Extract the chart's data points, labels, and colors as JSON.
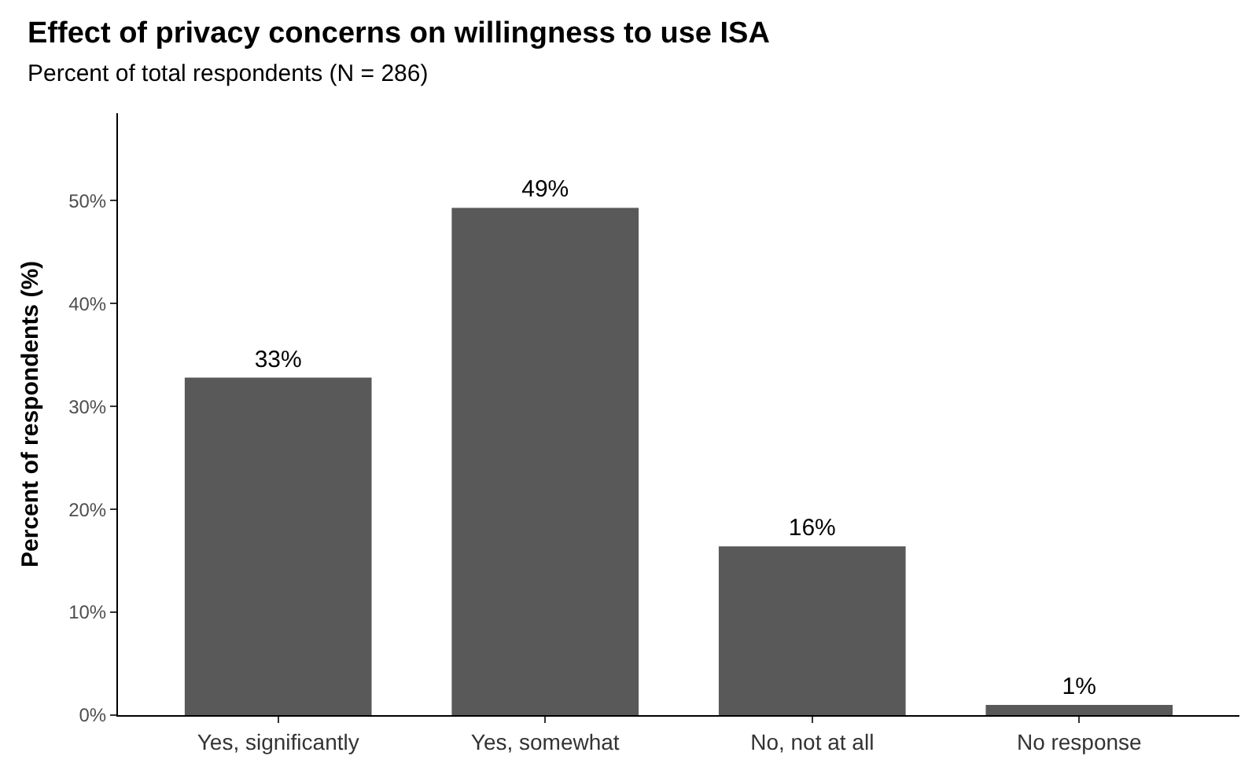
{
  "chart_data": {
    "type": "bar",
    "title": "Effect of privacy concerns on willingness to use ISA",
    "subtitle": "Percent of total respondents (N = 286)",
    "ylabel": "Percent of respondents (%)",
    "categories": [
      "Yes, significantly",
      "Yes, somewhat",
      "No, not at all",
      "No response"
    ],
    "values": [
      32.8,
      49.3,
      16.4,
      1.0
    ],
    "value_labels": [
      "33%",
      "49%",
      "16%",
      "1%"
    ],
    "color": "#595959",
    "ylim": [
      0,
      58.5
    ],
    "yticks": [
      {
        "value": 0,
        "label": "0%"
      },
      {
        "value": 10,
        "label": "10%"
      },
      {
        "value": 20,
        "label": "20%"
      },
      {
        "value": 30,
        "label": "30%"
      },
      {
        "value": 40,
        "label": "40%"
      },
      {
        "value": 50,
        "label": "50%"
      }
    ]
  }
}
